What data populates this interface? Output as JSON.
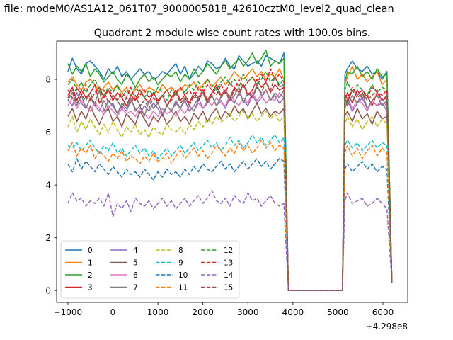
{
  "figure": {
    "suptitle": "n file: modeM0/AS1A12_061T07_9000005818_42610cztM0_level2_quad_clean",
    "title": "Quadrant 2 module wise count rates with 100.0s bins.",
    "x_offset_label": "+4.298e8"
  },
  "chart_data": {
    "type": "line",
    "title": "Quadrant 2 module wise count rates with 100.0s bins.",
    "xlim": [
      -1250,
      6550
    ],
    "ylim": [
      -0.45,
      9.45
    ],
    "x_offset": 429800000,
    "x_ticks": [
      -1000,
      0,
      1000,
      2000,
      3000,
      4000,
      5000,
      6000
    ],
    "x_tick_labels": [
      "−1000",
      "0",
      "1000",
      "2000",
      "3000",
      "4000",
      "5000",
      "6000"
    ],
    "y_ticks": [
      0,
      2,
      4,
      6,
      8
    ],
    "y_tick_labels": [
      "0",
      "2",
      "4",
      "6",
      "8"
    ],
    "legend_location": "lower-left",
    "legend_columns": 4,
    "gap_start": 3800,
    "gap_floor": [
      3900,
      5100
    ],
    "resume": 5100,
    "x_start": -1000,
    "x_end": 6200,
    "series": [
      {
        "name": "0",
        "color": "#1f77b4",
        "dash": "solid",
        "segment1": [
          8.3,
          8.8,
          8.4,
          8.2,
          8.6,
          8.7,
          8.5,
          8.3,
          8.0,
          8.4,
          8.2,
          8.5,
          8.1,
          8.3,
          8.0,
          8.2,
          8.4,
          8.2,
          8.3,
          8.0,
          8.1,
          8.3,
          8.2,
          8.4,
          8.6,
          8.2,
          8.5,
          8.0,
          8.2,
          8.5,
          8.3,
          8.7,
          8.6,
          8.4,
          8.5,
          8.8,
          8.5,
          8.4,
          8.9,
          8.7,
          8.5,
          8.6,
          8.7,
          8.5,
          8.9,
          8.8,
          8.7,
          8.6,
          9.0
        ],
        "segment2": [
          8.2,
          8.4,
          8.7,
          8.4,
          8.3,
          8.5,
          8.2,
          8.3,
          8.0,
          8.3,
          0.3
        ]
      },
      {
        "name": "1",
        "color": "#ff7f0e",
        "dash": "solid",
        "segment1": [
          7.9,
          8.1,
          7.8,
          7.6,
          7.9,
          8.0,
          7.8,
          7.5,
          7.7,
          7.9,
          7.6,
          7.8,
          7.5,
          7.7,
          7.4,
          7.6,
          7.8,
          7.5,
          7.7,
          7.6,
          7.5,
          7.8,
          7.6,
          7.7,
          7.5,
          7.6,
          7.8,
          7.7,
          7.9,
          7.6,
          7.8,
          8.0,
          7.7,
          7.9,
          8.1,
          7.8,
          8.0,
          8.3,
          8.1,
          8.0,
          8.2,
          8.4,
          8.1,
          8.3,
          8.0,
          8.2,
          8.1,
          8.4,
          8.0
        ],
        "segment2": [
          7.8,
          8.1,
          8.5,
          8.0,
          8.2,
          7.9,
          8.1,
          8.3,
          7.8,
          8.0,
          0.3
        ]
      },
      {
        "name": "2",
        "color": "#2ca02c",
        "dash": "solid",
        "segment1": [
          8.6,
          8.2,
          8.5,
          8.3,
          8.6,
          8.1,
          8.4,
          8.2,
          7.9,
          8.1,
          8.3,
          8.0,
          7.8,
          8.2,
          8.0,
          7.7,
          8.0,
          8.2,
          7.9,
          8.1,
          7.8,
          8.0,
          8.2,
          8.1,
          8.3,
          7.9,
          8.2,
          8.0,
          8.4,
          8.1,
          8.3,
          8.6,
          8.4,
          8.2,
          8.5,
          8.7,
          8.4,
          8.6,
          8.8,
          8.5,
          8.7,
          9.0,
          8.6,
          8.8,
          9.1,
          8.5,
          8.7,
          8.6,
          8.8
        ],
        "segment2": [
          7.9,
          8.3,
          8.2,
          8.5,
          8.1,
          8.3,
          8.0,
          8.4,
          8.1,
          8.2,
          0.3
        ]
      },
      {
        "name": "3",
        "color": "#d62728",
        "dash": "solid",
        "segment1": [
          7.4,
          7.7,
          7.2,
          7.6,
          7.3,
          7.5,
          7.8,
          7.1,
          7.4,
          7.6,
          7.2,
          7.5,
          7.3,
          7.0,
          7.4,
          7.2,
          7.6,
          7.3,
          7.1,
          7.5,
          7.2,
          7.4,
          7.0,
          7.3,
          7.6,
          7.2,
          7.4,
          7.1,
          7.5,
          7.3,
          7.6,
          7.2,
          7.5,
          7.8,
          7.4,
          7.6,
          7.3,
          7.7,
          7.5,
          7.8,
          7.4,
          7.6,
          8.0,
          7.7,
          7.9,
          7.5,
          7.8,
          7.6,
          7.7
        ],
        "segment2": [
          7.2,
          7.5,
          7.1,
          7.6,
          7.3,
          7.4,
          7.0,
          7.5,
          7.2,
          7.3,
          0.3
        ]
      },
      {
        "name": "4",
        "color": "#9467bd",
        "dash": "solid",
        "segment1": [
          7.2,
          7.0,
          7.5,
          7.1,
          6.9,
          7.3,
          7.0,
          6.8,
          7.2,
          6.9,
          7.1,
          6.7,
          7.0,
          6.8,
          7.2,
          6.9,
          6.7,
          7.0,
          6.8,
          7.1,
          6.9,
          6.6,
          7.0,
          6.8,
          7.1,
          6.9,
          7.2,
          6.8,
          7.0,
          7.3,
          6.9,
          7.1,
          7.4,
          7.0,
          7.2,
          6.9,
          7.3,
          7.1,
          7.5,
          7.2,
          7.0,
          7.4,
          7.1,
          7.3,
          7.6,
          7.2,
          7.4,
          7.1,
          7.3
        ],
        "segment2": [
          6.9,
          7.2,
          6.8,
          7.1,
          7.3,
          6.9,
          7.2,
          7.0,
          7.1,
          6.8,
          0.3
        ]
      },
      {
        "name": "5",
        "color": "#8c564b",
        "dash": "solid",
        "segment1": [
          6.6,
          6.9,
          6.4,
          6.8,
          6.5,
          7.0,
          6.6,
          6.3,
          6.7,
          6.9,
          6.4,
          6.6,
          6.2,
          6.7,
          6.5,
          6.3,
          6.8,
          6.5,
          6.2,
          6.6,
          6.4,
          6.7,
          6.3,
          6.5,
          6.8,
          6.4,
          6.6,
          6.3,
          6.7,
          6.5,
          6.8,
          6.4,
          6.7,
          6.9,
          6.5,
          6.8,
          6.6,
          7.0,
          6.7,
          6.9,
          6.5,
          6.8,
          7.1,
          6.7,
          6.9,
          6.6,
          6.8,
          6.7,
          6.9
        ],
        "segment2": [
          6.6,
          6.8,
          6.4,
          6.9,
          6.5,
          6.7,
          6.3,
          6.8,
          6.5,
          6.6,
          0.3
        ]
      },
      {
        "name": "6",
        "color": "#e377c2",
        "dash": "solid",
        "segment1": [
          7.0,
          7.3,
          6.9,
          7.2,
          7.0,
          6.8,
          7.1,
          6.9,
          6.7,
          7.0,
          6.8,
          6.6,
          6.9,
          6.7,
          6.8,
          6.6,
          6.9,
          6.7,
          6.5,
          6.8,
          6.6,
          6.9,
          6.7,
          6.8,
          6.6,
          6.9,
          6.7,
          7.0,
          6.8,
          7.1,
          6.9,
          7.2,
          7.0,
          7.3,
          7.1,
          7.0,
          7.4,
          7.2,
          7.0,
          7.3,
          7.1,
          7.5,
          7.2,
          7.4,
          7.1,
          7.3,
          7.2,
          7.5,
          7.3
        ],
        "segment2": [
          7.0,
          7.3,
          6.9,
          7.2,
          7.1,
          6.8,
          7.2,
          7.0,
          7.3,
          6.9,
          0.3
        ]
      },
      {
        "name": "7",
        "color": "#7f7f7f",
        "dash": "solid",
        "segment1": [
          7.2,
          7.5,
          7.0,
          7.4,
          6.9,
          7.3,
          7.1,
          7.6,
          6.8,
          7.2,
          7.0,
          6.7,
          7.1,
          6.9,
          7.3,
          6.8,
          7.0,
          6.6,
          7.2,
          6.9,
          7.1,
          6.7,
          7.0,
          6.8,
          7.2,
          6.9,
          7.3,
          7.0,
          6.8,
          7.2,
          7.5,
          7.1,
          7.4,
          7.0,
          7.3,
          7.6,
          7.2,
          7.4,
          7.7,
          7.1,
          7.5,
          7.3,
          7.8,
          7.4,
          7.6,
          7.2,
          7.5,
          7.3,
          7.6
        ],
        "segment2": [
          7.3,
          7.0,
          7.4,
          7.1,
          7.5,
          6.9,
          7.2,
          7.4,
          7.0,
          7.2,
          0.3
        ]
      },
      {
        "name": "8",
        "color": "#bcbd22",
        "dash": "dashed",
        "segment1": [
          6.2,
          6.6,
          6.0,
          6.4,
          6.1,
          6.5,
          6.2,
          5.9,
          6.3,
          6.0,
          6.4,
          6.1,
          5.8,
          6.2,
          6.0,
          6.3,
          5.9,
          6.1,
          5.8,
          6.2,
          6.0,
          5.9,
          6.3,
          6.1,
          6.0,
          6.2,
          5.9,
          6.3,
          6.1,
          6.4,
          6.2,
          6.5,
          6.3,
          6.6,
          6.4,
          6.5,
          6.7,
          6.4,
          6.6,
          6.8,
          6.5,
          6.7,
          6.4,
          6.6,
          6.8,
          6.5,
          6.7,
          6.4,
          6.6
        ],
        "segment2": [
          6.3,
          6.6,
          6.2,
          6.5,
          6.1,
          6.4,
          6.6,
          6.2,
          6.5,
          6.3,
          0.3
        ]
      },
      {
        "name": "9",
        "color": "#17becf",
        "dash": "dashed",
        "segment1": [
          5.5,
          5.4,
          5.6,
          5.3,
          5.5,
          5.7,
          5.4,
          5.2,
          5.5,
          5.3,
          5.6,
          5.2,
          5.4,
          5.1,
          5.3,
          5.5,
          5.2,
          5.4,
          5.1,
          5.3,
          5.0,
          5.2,
          5.4,
          5.1,
          5.3,
          5.5,
          5.2,
          5.4,
          5.6,
          5.3,
          5.5,
          5.7,
          5.4,
          5.6,
          5.3,
          5.5,
          5.8,
          5.5,
          5.7,
          5.4,
          5.6,
          5.9,
          5.6,
          5.8,
          5.5,
          5.7,
          5.9,
          5.6,
          5.8
        ],
        "segment2": [
          5.5,
          5.7,
          5.4,
          5.6,
          5.3,
          5.5,
          5.7,
          5.4,
          5.6,
          5.5,
          0.3
        ]
      },
      {
        "name": "10",
        "color": "#1f77b4",
        "dash": "dashed",
        "segment1": [
          4.8,
          4.5,
          5.0,
          4.6,
          4.9,
          4.7,
          4.5,
          4.8,
          4.6,
          4.4,
          4.7,
          4.5,
          4.3,
          4.6,
          4.4,
          4.5,
          4.3,
          4.6,
          4.4,
          4.2,
          4.5,
          4.3,
          4.6,
          4.4,
          4.5,
          4.3,
          4.6,
          4.4,
          4.7,
          4.5,
          4.8,
          4.6,
          4.5,
          4.7,
          4.9,
          4.6,
          4.8,
          4.5,
          4.7,
          4.9,
          4.6,
          4.8,
          5.0,
          4.7,
          4.9,
          4.6,
          4.8,
          5.0,
          4.9
        ],
        "segment2": [
          4.6,
          4.8,
          4.5,
          4.7,
          4.9,
          4.6,
          4.8,
          4.5,
          4.7,
          4.6,
          0.3
        ]
      },
      {
        "name": "11",
        "color": "#ff7f0e",
        "dash": "dashed",
        "segment1": [
          5.3,
          5.6,
          5.1,
          5.4,
          5.2,
          5.5,
          5.0,
          5.3,
          5.1,
          4.9,
          5.2,
          5.0,
          5.3,
          4.9,
          5.1,
          5.0,
          4.8,
          5.1,
          4.9,
          5.2,
          4.9,
          5.0,
          5.2,
          4.8,
          5.1,
          5.3,
          5.0,
          5.2,
          5.4,
          5.1,
          5.3,
          5.0,
          5.2,
          5.5,
          5.3,
          5.1,
          5.4,
          5.2,
          5.6,
          5.3,
          5.5,
          5.2,
          5.4,
          5.7,
          5.4,
          5.6,
          5.3,
          5.5,
          5.4
        ],
        "segment2": [
          5.2,
          5.5,
          5.1,
          5.4,
          5.0,
          5.3,
          5.5,
          5.1,
          5.4,
          5.2,
          0.3
        ]
      },
      {
        "name": "12",
        "color": "#2ca02c",
        "dash": "dashed",
        "segment1": [
          7.8,
          8.0,
          7.6,
          7.9,
          7.5,
          7.8,
          8.0,
          7.6,
          7.4,
          7.7,
          7.5,
          7.8,
          7.3,
          7.6,
          7.4,
          7.7,
          7.5,
          7.3,
          7.6,
          7.4,
          7.7,
          7.5,
          7.2,
          7.6,
          7.4,
          7.7,
          7.5,
          7.8,
          7.6,
          7.9,
          7.7,
          8.0,
          7.8,
          7.6,
          7.9,
          8.1,
          7.8,
          8.0,
          7.7,
          8.2,
          7.9,
          8.1,
          7.8,
          8.0,
          8.3,
          7.9,
          8.1,
          7.8,
          8.0
        ],
        "segment2": [
          7.6,
          7.9,
          7.5,
          7.8,
          7.6,
          7.4,
          7.8,
          7.5,
          7.7,
          7.6,
          0.3
        ]
      },
      {
        "name": "13",
        "color": "#d62728",
        "dash": "dashed",
        "segment1": [
          7.6,
          7.3,
          7.7,
          7.4,
          7.8,
          7.2,
          7.5,
          7.7,
          7.3,
          7.6,
          7.4,
          7.2,
          7.5,
          7.3,
          7.7,
          7.2,
          7.4,
          7.6,
          7.3,
          7.5,
          7.1,
          7.4,
          7.6,
          7.3,
          7.5,
          7.7,
          7.4,
          7.6,
          7.3,
          7.7,
          7.5,
          7.8,
          7.6,
          7.4,
          7.8,
          7.5,
          7.9,
          7.6,
          8.0,
          7.7,
          7.9,
          8.1,
          7.8,
          8.2,
          7.9,
          8.4,
          8.0,
          8.2,
          7.9
        ],
        "segment2": [
          7.5,
          7.2,
          7.7,
          7.4,
          7.6,
          7.3,
          7.7,
          7.5,
          7.4,
          7.6,
          0.3
        ]
      },
      {
        "name": "14",
        "color": "#9467bd",
        "dash": "dashed",
        "segment1": [
          3.3,
          3.7,
          3.4,
          3.5,
          3.2,
          3.4,
          3.3,
          3.5,
          3.2,
          3.7,
          2.8,
          3.3,
          3.1,
          3.4,
          3.0,
          3.5,
          3.3,
          3.2,
          3.4,
          3.1,
          3.3,
          3.5,
          3.2,
          3.4,
          3.1,
          3.3,
          3.5,
          3.2,
          3.4,
          3.6,
          3.3,
          3.5,
          3.8,
          3.4,
          3.3,
          3.5,
          3.2,
          3.6,
          3.4,
          3.3,
          3.7,
          3.4,
          3.5,
          3.2,
          3.4,
          3.6,
          3.3,
          3.2,
          3.3
        ],
        "segment2": [
          3.4,
          3.7,
          3.3,
          3.4,
          3.5,
          3.2,
          3.3,
          3.5,
          3.3,
          3.1,
          0.3
        ]
      },
      {
        "name": "15",
        "color": "#8c564b",
        "dash": "dashed",
        "segment1": [
          7.3,
          7.6,
          7.1,
          7.4,
          7.2,
          7.5,
          7.0,
          7.3,
          7.6,
          7.1,
          7.4,
          7.2,
          6.9,
          7.3,
          7.1,
          7.4,
          7.0,
          7.2,
          6.9,
          7.3,
          7.1,
          7.4,
          7.0,
          7.2,
          7.5,
          7.1,
          7.3,
          7.0,
          7.4,
          7.2,
          7.5,
          7.1,
          7.4,
          7.7,
          7.3,
          7.5,
          7.2,
          7.6,
          7.4,
          7.8,
          7.5,
          7.3,
          7.7,
          7.5,
          7.9,
          7.6,
          8.1,
          7.7,
          7.8
        ],
        "segment2": [
          7.4,
          7.1,
          7.6,
          7.3,
          7.5,
          7.2,
          7.4,
          7.6,
          7.2,
          7.4,
          0.3
        ]
      }
    ]
  }
}
